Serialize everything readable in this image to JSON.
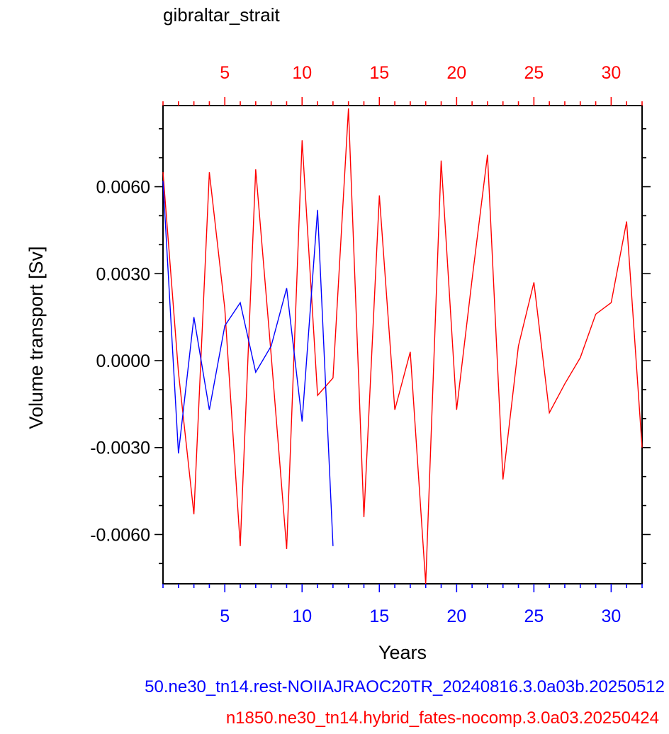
{
  "title": "gibraltar_strait",
  "captions": {
    "blue": "50.ne30_tn14.rest-NOIIAJRAOC20TR_20240816.3.0a03b.20250512",
    "red": "n1850.ne30_tn14.hybrid_fates-nocomp.3.0a03.20250424"
  },
  "colors": {
    "blue": "#0000ff",
    "red": "#ff0000",
    "axis": "#000000"
  },
  "chart_data": {
    "type": "line",
    "title": "gibraltar_strait",
    "xlabel": "Years",
    "ylabel": "Volume transport [Sv]",
    "xlim": [
      1,
      32
    ],
    "ylim": [
      -0.0077,
      0.0088
    ],
    "yticks": [
      "0.0060",
      "0.0030",
      "0.0000",
      "-0.0030",
      "-0.0060"
    ],
    "ytick_values": [
      0.006,
      0.003,
      0.0,
      -0.003,
      -0.006
    ],
    "xticks": [
      5,
      10,
      15,
      20,
      25,
      30
    ],
    "bottom_axis_color": "blue",
    "top_axis_color": "red",
    "series": [
      {
        "color": "red",
        "x": [
          1,
          2,
          3,
          4,
          5,
          6,
          7,
          8,
          9,
          10,
          11,
          12,
          13,
          14,
          15,
          16,
          17,
          18,
          19,
          20,
          21,
          22,
          23,
          24,
          25,
          26,
          27,
          28,
          29,
          30,
          31,
          32
        ],
        "y": [
          0.0065,
          -0.0004,
          -0.0053,
          0.0065,
          0.0018,
          -0.0064,
          0.0066,
          0.0002,
          -0.0065,
          0.0076,
          -0.0012,
          -0.0006,
          0.0087,
          -0.0054,
          0.0057,
          -0.0017,
          0.0003,
          -0.0077,
          0.0069,
          -0.0017,
          0.0028,
          0.0071,
          -0.0041,
          0.0005,
          0.0027,
          -0.0018,
          -0.0008,
          0.0001,
          0.0016,
          0.002,
          0.0048,
          -0.003
        ]
      },
      {
        "color": "blue",
        "x": [
          1,
          2,
          3,
          4,
          5,
          6,
          7,
          8,
          9,
          10,
          11,
          12
        ],
        "y": [
          0.0062,
          -0.0032,
          0.0015,
          -0.0017,
          0.0012,
          0.002,
          -0.0004,
          0.0005,
          0.0025,
          -0.0021,
          0.0052,
          -0.0064
        ]
      }
    ]
  }
}
